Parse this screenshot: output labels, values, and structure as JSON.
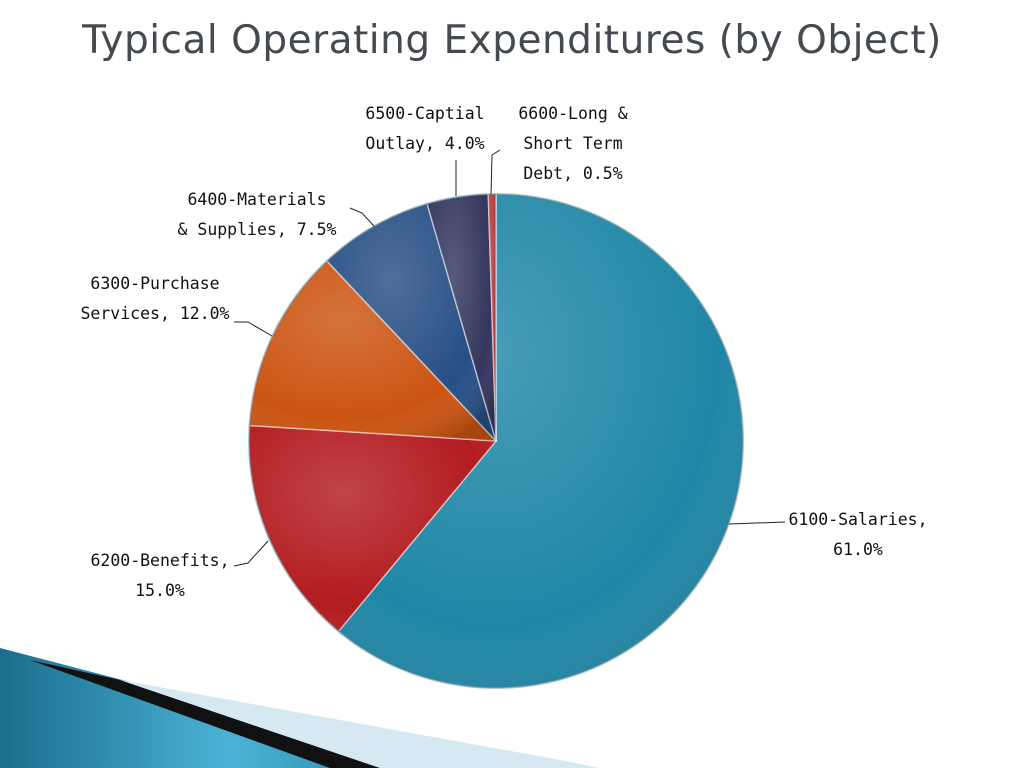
{
  "slide": {
    "title": "Typical Operating Expenditures (by Object)"
  },
  "chart_data": {
    "type": "pie",
    "title": "Typical Operating Expenditures (by Object)",
    "slices": [
      {
        "label": "6100-Salaries, 61.0%",
        "name": "6100-Salaries",
        "value": 61.0,
        "color": "#1f87a6"
      },
      {
        "label": "6200-Benefits, 15.0%",
        "name": "6200-Benefits",
        "value": 15.0,
        "color": "#b31b1f"
      },
      {
        "label": "6300-Purchase Services, 12.0%",
        "name": "6300-Purchase Services",
        "value": 12.0,
        "color": "#cc5412"
      },
      {
        "label": "6400-Materials & Supplies, 7.5%",
        "name": "6400-Materials & Supplies",
        "value": 7.5,
        "color": "#274f85"
      },
      {
        "label": "6500-Captial Outlay, 4.0%",
        "name": "6500-Captial Outlay",
        "value": 4.0,
        "color": "#34365e"
      },
      {
        "label": "6600-Long & Short Term Debt, 0.5%",
        "name": "6600-Long & Short Term Debt",
        "value": 0.5,
        "color": "#b53a3a"
      }
    ]
  }
}
